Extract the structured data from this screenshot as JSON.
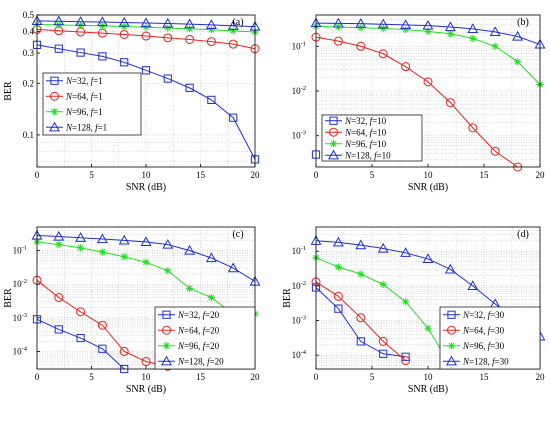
{
  "figure": {
    "colors": {
      "N32": "#1f2fcc",
      "N64": "#e8211d",
      "N96": "#22dd22",
      "N128": "#1f2fcc"
    }
  },
  "chart_data": [
    {
      "type": "line",
      "panel_tag": "(a)",
      "xlabel": "SNR (dB)",
      "ylabel": "BER",
      "yscale": "log",
      "xlim": [
        0,
        20
      ],
      "ylim": [
        0.065,
        0.5
      ],
      "xticks": [
        0,
        5,
        10,
        15,
        20
      ],
      "xtick_labels": [
        "0",
        "5",
        "10",
        "15",
        "20"
      ],
      "yticks": [
        0.1,
        0.2,
        0.3,
        0.4,
        0.5
      ],
      "ytick_labels": [
        "0.1",
        "0.2",
        "0.3",
        "0.4",
        "0.5"
      ],
      "grid": true,
      "legend_position": "bottom-left",
      "x": [
        0,
        2,
        4,
        6,
        8,
        10,
        12,
        14,
        16,
        18,
        20
      ],
      "series": [
        {
          "name_prefix": "N",
          "name_suffix": "=32, ",
          "f_prefix": "f",
          "f_suffix": "=1",
          "marker": "square",
          "color": "#1f2fcc",
          "values": [
            0.335,
            0.318,
            0.302,
            0.287,
            0.265,
            0.238,
            0.213,
            0.188,
            0.16,
            0.126,
            0.072
          ]
        },
        {
          "name_prefix": "N",
          "name_suffix": "=64, ",
          "f_prefix": "f",
          "f_suffix": "=1",
          "marker": "circle",
          "color": "#e8211d",
          "values": [
            0.412,
            0.405,
            0.398,
            0.392,
            0.385,
            0.377,
            0.368,
            0.36,
            0.35,
            0.338,
            0.318
          ]
        },
        {
          "name_prefix": "N",
          "name_suffix": "=96, ",
          "f_prefix": "f",
          "f_suffix": "=1",
          "marker": "star",
          "color": "#22dd22",
          "values": [
            0.44,
            0.438,
            0.435,
            0.432,
            0.428,
            0.424,
            0.42,
            0.415,
            0.41,
            0.404,
            0.398
          ]
        },
        {
          "name_prefix": "N",
          "name_suffix": "=128, ",
          "f_prefix": "f",
          "f_suffix": "=1",
          "marker": "triangle",
          "color": "#1f2fcc",
          "values": [
            0.462,
            0.46,
            0.457,
            0.455,
            0.452,
            0.449,
            0.446,
            0.442,
            0.438,
            0.433,
            0.428
          ]
        }
      ]
    },
    {
      "type": "line",
      "panel_tag": "(b)",
      "xlabel": "SNR (dB)",
      "ylabel": "",
      "yscale": "log",
      "xlim": [
        0,
        20
      ],
      "ylim": [
        0.0002,
        0.5
      ],
      "xticks": [
        0,
        5,
        10,
        15,
        20
      ],
      "xtick_labels": [
        "0",
        "5",
        "10",
        "15",
        "20"
      ],
      "yticks": [
        0.001,
        0.01,
        0.1
      ],
      "ytick_labels": [
        [
          "10",
          "-3"
        ],
        [
          "10",
          "-2"
        ],
        [
          "10",
          "-1"
        ]
      ],
      "grid": true,
      "legend_position": "bottom-left",
      "x": [
        0,
        2,
        4,
        6,
        8,
        10,
        12,
        14,
        16,
        18,
        20
      ],
      "series": [
        {
          "name_prefix": "N",
          "name_suffix": "=32, ",
          "f_prefix": "f",
          "f_suffix": "=10",
          "marker": "square",
          "color": "#1f2fcc",
          "x": [
            0
          ],
          "values": [
            0.00038
          ]
        },
        {
          "name_prefix": "N",
          "name_suffix": "=64, ",
          "f_prefix": "f",
          "f_suffix": "=10",
          "marker": "circle",
          "color": "#e8211d",
          "x": [
            0,
            2,
            4,
            6,
            8,
            10,
            12,
            14,
            16,
            18
          ],
          "values": [
            0.16,
            0.13,
            0.1,
            0.068,
            0.035,
            0.016,
            0.0055,
            0.0015,
            0.00045,
            0.0002
          ]
        },
        {
          "name_prefix": "N",
          "name_suffix": "=96, ",
          "f_prefix": "f",
          "f_suffix": "=10",
          "marker": "star",
          "color": "#22dd22",
          "values": [
            0.28,
            0.27,
            0.26,
            0.25,
            0.235,
            0.215,
            0.19,
            0.15,
            0.1,
            0.045,
            0.014
          ]
        },
        {
          "name_prefix": "N",
          "name_suffix": "=128, ",
          "f_prefix": "f",
          "f_suffix": "=10",
          "marker": "triangle",
          "color": "#1f2fcc",
          "values": [
            0.33,
            0.325,
            0.32,
            0.31,
            0.3,
            0.29,
            0.27,
            0.245,
            0.21,
            0.165,
            0.11
          ]
        }
      ]
    },
    {
      "type": "line",
      "panel_tag": "(c)",
      "xlabel": "SNR (dB)",
      "ylabel": "BER",
      "yscale": "log",
      "xlim": [
        0,
        20
      ],
      "ylim": [
        3e-05,
        0.5
      ],
      "xticks": [
        0,
        5,
        10,
        15,
        20
      ],
      "xtick_labels": [
        "0",
        "5",
        "10",
        "15",
        "20"
      ],
      "yticks": [
        0.0001,
        0.001,
        0.01,
        0.1
      ],
      "ytick_labels": [
        [
          "10",
          "-4"
        ],
        [
          "10",
          "-3"
        ],
        [
          "10",
          "-2"
        ],
        [
          "10",
          "-1"
        ]
      ],
      "grid": true,
      "legend_position": "bottom-right",
      "x": [
        0,
        2,
        4,
        6,
        8,
        10,
        12,
        14,
        16,
        18,
        20
      ],
      "series": [
        {
          "name_prefix": "N",
          "name_suffix": "=32, ",
          "f_prefix": "f",
          "f_suffix": "=20",
          "marker": "square",
          "color": "#1f2fcc",
          "x": [
            0,
            2,
            4,
            6,
            8
          ],
          "values": [
            0.0009,
            0.00045,
            0.00025,
            0.00012,
            3e-05
          ]
        },
        {
          "name_prefix": "N",
          "name_suffix": "=64, ",
          "f_prefix": "f",
          "f_suffix": "=20",
          "marker": "circle",
          "color": "#e8211d",
          "x": [
            0,
            2,
            4,
            6,
            8,
            10,
            12
          ],
          "values": [
            0.013,
            0.004,
            0.0015,
            0.0006,
            0.0001,
            5e-05,
            3.6e-05
          ]
        },
        {
          "name_prefix": "N",
          "name_suffix": "=96, ",
          "f_prefix": "f",
          "f_suffix": "=20",
          "marker": "star",
          "color": "#22dd22",
          "values": [
            0.18,
            0.15,
            0.12,
            0.09,
            0.065,
            0.045,
            0.025,
            0.0075,
            0.004,
            0.0013,
            0.0013
          ]
        },
        {
          "name_prefix": "N",
          "name_suffix": "=128, ",
          "f_prefix": "f",
          "f_suffix": "=20",
          "marker": "triangle",
          "color": "#1f2fcc",
          "values": [
            0.28,
            0.26,
            0.24,
            0.22,
            0.2,
            0.18,
            0.15,
            0.1,
            0.06,
            0.03,
            0.012
          ]
        }
      ]
    },
    {
      "type": "line",
      "panel_tag": "(d)",
      "xlabel": "SNR (dB)",
      "ylabel": "BER",
      "yscale": "log",
      "xlim": [
        0,
        20
      ],
      "ylim": [
        4e-05,
        0.5
      ],
      "xticks": [
        0,
        5,
        10,
        15,
        20
      ],
      "xtick_labels": [
        "0",
        "5",
        "10",
        "15",
        "20"
      ],
      "yticks": [
        0.0001,
        0.001,
        0.01,
        0.1
      ],
      "ytick_labels": [
        [
          "10",
          "-4"
        ],
        [
          "10",
          "-3"
        ],
        [
          "10",
          "-2"
        ],
        [
          "10",
          "-1"
        ]
      ],
      "grid": true,
      "legend_position": "bottom-right",
      "x": [
        0,
        2,
        4,
        6,
        8,
        10,
        12,
        14,
        16,
        18,
        20
      ],
      "series": [
        {
          "name_prefix": "N",
          "name_suffix": "=32, ",
          "f_prefix": "f",
          "f_suffix": "=30",
          "marker": "square",
          "color": "#1f2fcc",
          "x": [
            0,
            2,
            4,
            6,
            8
          ],
          "values": [
            0.009,
            0.0022,
            0.00025,
            0.00011,
            9e-05
          ]
        },
        {
          "name_prefix": "N",
          "name_suffix": "=64, ",
          "f_prefix": "f",
          "f_suffix": "=30",
          "marker": "circle",
          "color": "#e8211d",
          "x": [
            0,
            2,
            4,
            6,
            8
          ],
          "values": [
            0.013,
            0.005,
            0.0012,
            0.00025,
            7e-05
          ]
        },
        {
          "name_prefix": "N",
          "name_suffix": "=96, ",
          "f_prefix": "f",
          "f_suffix": "=30",
          "marker": "star",
          "color": "#22dd22",
          "x": [
            0,
            2,
            4,
            6,
            8,
            10,
            12
          ],
          "values": [
            0.065,
            0.035,
            0.022,
            0.011,
            0.0035,
            0.0006,
            5e-05
          ]
        },
        {
          "name_prefix": "N",
          "name_suffix": "=128, ",
          "f_prefix": "f",
          "f_suffix": "=30",
          "marker": "triangle",
          "color": "#1f2fcc",
          "values": [
            0.2,
            0.18,
            0.15,
            0.12,
            0.09,
            0.06,
            0.03,
            0.01,
            0.003,
            0.001,
            0.00035
          ]
        }
      ]
    }
  ]
}
